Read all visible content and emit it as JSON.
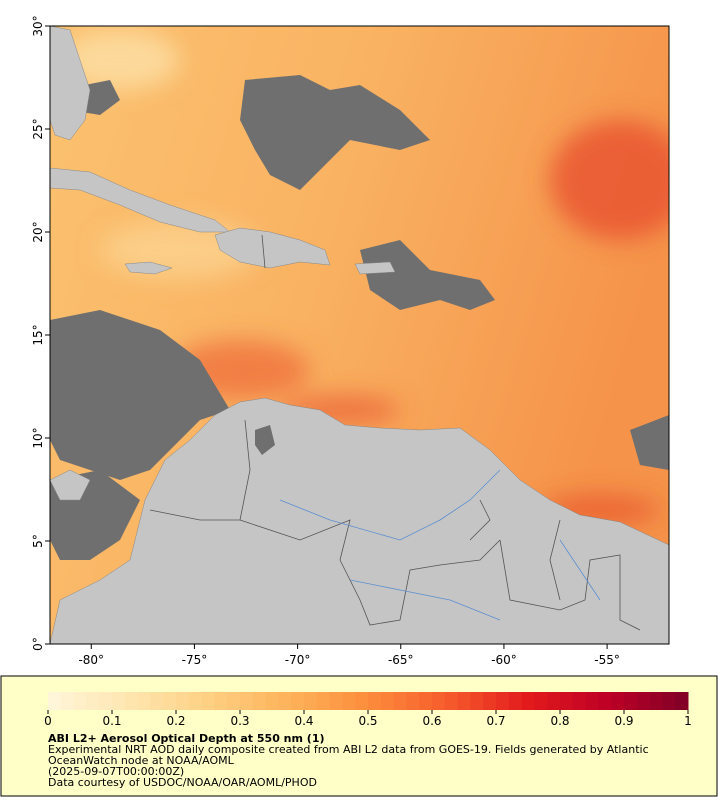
{
  "map": {
    "lonlim": [
      -82,
      -52
    ],
    "latlim": [
      0,
      30
    ],
    "lat_ticks": [
      {
        "value": 0,
        "label": "0°"
      },
      {
        "value": 5,
        "label": "5°"
      },
      {
        "value": 10,
        "label": "10°"
      },
      {
        "value": 15,
        "label": "15°"
      },
      {
        "value": 20,
        "label": "20°"
      },
      {
        "value": 25,
        "label": "25°"
      },
      {
        "value": 30,
        "label": "30°"
      }
    ],
    "lon_ticks": [
      {
        "value": -80,
        "label": "-80°"
      },
      {
        "value": -75,
        "label": "-75°"
      },
      {
        "value": -70,
        "label": "-70°"
      },
      {
        "value": -65,
        "label": "-65°"
      },
      {
        "value": -60,
        "label": "-60°"
      },
      {
        "value": -55,
        "label": "-55°"
      }
    ]
  },
  "colorbar": {
    "lim": [
      0,
      1
    ],
    "ticks": [
      0,
      0.1,
      0.2,
      0.3,
      0.4,
      0.5,
      0.6,
      0.7,
      0.8,
      0.9,
      1
    ],
    "colors": [
      "#fff6dc",
      "#fee6b0",
      "#fed084",
      "#fdb35a",
      "#fd8d3c",
      "#f65b2c",
      "#e31a1c",
      "#bd0026",
      "#800026"
    ]
  },
  "caption": {
    "title": "ABI L2+ Aerosol Optical Depth at 550 nm (1)",
    "lines": [
      "Experimental NRT AOD daily composite created from ABI L2 data from GOES-19. Fields generated by Atlantic",
      "OceanWatch node at NOAA/AOML",
      "(2025-09-07T00:00:00Z)",
      "Data courtesy of USDOC/NOAA/OAR/AOML/PHOD"
    ]
  }
}
